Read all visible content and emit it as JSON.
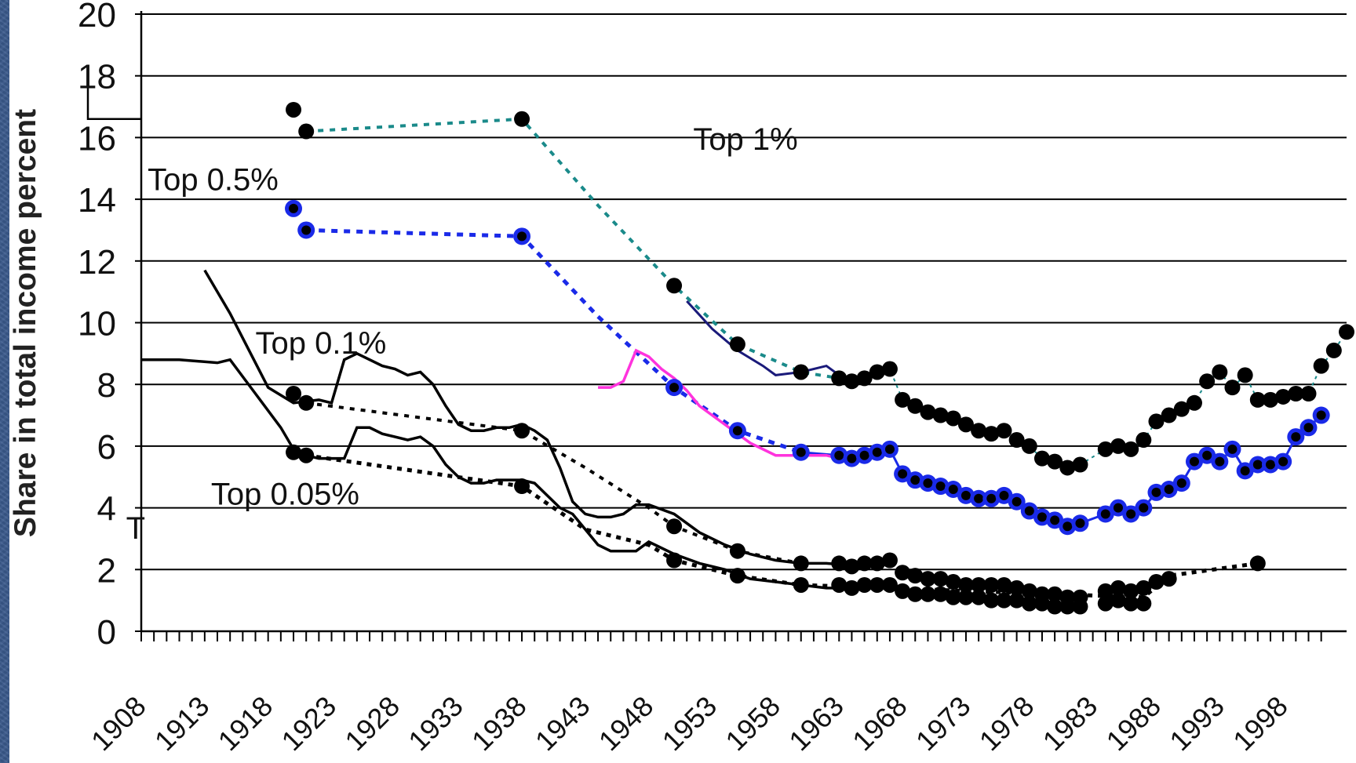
{
  "chart_data": {
    "type": "line",
    "ylabel": "Share in total income percent",
    "xlabel": "",
    "ylim": [
      0,
      20
    ],
    "xlim": [
      1908,
      2001
    ],
    "yticks": [
      0,
      2,
      4,
      6,
      8,
      10,
      12,
      14,
      16,
      18,
      20
    ],
    "xticks": [
      "1908",
      "1913",
      "1918",
      "1923",
      "1928",
      "1933",
      "1938",
      "1943",
      "1948",
      "1953",
      "1958",
      "1963",
      "1968",
      "1973",
      "1978",
      "1983",
      "1988",
      "1993",
      "1998"
    ],
    "grid": true,
    "colors": {
      "top1": "#1a8a8a",
      "top05": "#1a2ae8",
      "magenta": "#ff33dd",
      "navy": "#1a1a7a",
      "black": "#000000"
    },
    "annotations": [
      {
        "text": "Top 1%",
        "x": 1951.5,
        "y": 15.6
      },
      {
        "text": "Top 0.5%",
        "x": 1908.5,
        "y": 14.3
      },
      {
        "text": "Top 0.1%",
        "x": 1917,
        "y": 9.0
      },
      {
        "text": "Top 0.05%",
        "x": 1913.5,
        "y": 4.1
      },
      {
        "text": "T",
        "x": 1906.8,
        "y": 3.0
      }
    ],
    "series": [
      {
        "key": "top1_points",
        "points": [
          [
            1920,
            16.9
          ],
          [
            1921,
            16.2
          ],
          [
            1938,
            16.6
          ],
          [
            1950,
            11.2
          ],
          [
            1955,
            9.3
          ],
          [
            1960,
            8.4
          ],
          [
            1963,
            8.2
          ],
          [
            1964,
            8.1
          ],
          [
            1965,
            8.2
          ],
          [
            1966,
            8.4
          ],
          [
            1967,
            8.5
          ],
          [
            1968,
            7.5
          ],
          [
            1969,
            7.3
          ],
          [
            1970,
            7.1
          ],
          [
            1971,
            7.0
          ],
          [
            1972,
            6.9
          ],
          [
            1973,
            6.7
          ],
          [
            1974,
            6.5
          ],
          [
            1975,
            6.4
          ],
          [
            1976,
            6.5
          ],
          [
            1977,
            6.2
          ],
          [
            1978,
            6.0
          ],
          [
            1979,
            5.6
          ],
          [
            1980,
            5.5
          ],
          [
            1981,
            5.3
          ],
          [
            1982,
            5.4
          ],
          [
            1984,
            5.9
          ],
          [
            1985,
            6.0
          ],
          [
            1986,
            5.9
          ],
          [
            1987,
            6.2
          ],
          [
            1988,
            6.8
          ],
          [
            1989,
            7.0
          ],
          [
            1990,
            7.2
          ],
          [
            1991,
            7.4
          ],
          [
            1992,
            8.1
          ],
          [
            1993,
            8.4
          ],
          [
            1994,
            7.9
          ],
          [
            1995,
            8.3
          ],
          [
            1996,
            7.5
          ],
          [
            1997,
            7.5
          ],
          [
            1998,
            7.6
          ],
          [
            1999,
            7.7
          ],
          [
            2000,
            7.7
          ],
          [
            2001,
            8.6
          ],
          [
            2002,
            9.1
          ],
          [
            2003,
            9.7
          ]
        ]
      },
      {
        "key": "top05_points",
        "points": [
          [
            1920,
            13.7
          ],
          [
            1921,
            13.0
          ],
          [
            1938,
            12.8
          ],
          [
            1950,
            7.9
          ],
          [
            1955,
            6.5
          ],
          [
            1960,
            5.8
          ],
          [
            1963,
            5.7
          ],
          [
            1964,
            5.6
          ],
          [
            1965,
            5.7
          ],
          [
            1966,
            5.8
          ],
          [
            1967,
            5.9
          ],
          [
            1968,
            5.1
          ],
          [
            1969,
            4.9
          ],
          [
            1970,
            4.8
          ],
          [
            1971,
            4.7
          ],
          [
            1972,
            4.6
          ],
          [
            1973,
            4.4
          ],
          [
            1974,
            4.3
          ],
          [
            1975,
            4.3
          ],
          [
            1976,
            4.4
          ],
          [
            1977,
            4.2
          ],
          [
            1978,
            3.9
          ],
          [
            1979,
            3.7
          ],
          [
            1980,
            3.6
          ],
          [
            1981,
            3.4
          ],
          [
            1982,
            3.5
          ],
          [
            1984,
            3.8
          ],
          [
            1985,
            4.0
          ],
          [
            1986,
            3.8
          ],
          [
            1987,
            4.0
          ],
          [
            1988,
            4.5
          ],
          [
            1989,
            4.6
          ],
          [
            1990,
            4.8
          ],
          [
            1991,
            5.5
          ],
          [
            1992,
            5.7
          ],
          [
            1993,
            5.5
          ],
          [
            1994,
            5.9
          ],
          [
            1995,
            5.2
          ],
          [
            1996,
            5.4
          ],
          [
            1997,
            5.4
          ],
          [
            1998,
            5.5
          ],
          [
            1999,
            6.3
          ],
          [
            2000,
            6.6
          ],
          [
            2001,
            7.0
          ]
        ]
      },
      {
        "key": "top01_points",
        "points": [
          [
            1920,
            7.7
          ],
          [
            1921,
            7.4
          ],
          [
            1938,
            6.5
          ],
          [
            1950,
            3.4
          ],
          [
            1955,
            2.6
          ],
          [
            1960,
            2.2
          ],
          [
            1963,
            2.2
          ],
          [
            1964,
            2.1
          ],
          [
            1965,
            2.2
          ],
          [
            1966,
            2.2
          ],
          [
            1967,
            2.3
          ],
          [
            1968,
            1.9
          ],
          [
            1969,
            1.8
          ],
          [
            1970,
            1.7
          ],
          [
            1971,
            1.7
          ],
          [
            1972,
            1.6
          ],
          [
            1973,
            1.5
          ],
          [
            1974,
            1.5
          ],
          [
            1975,
            1.5
          ],
          [
            1976,
            1.5
          ],
          [
            1977,
            1.4
          ],
          [
            1978,
            1.3
          ],
          [
            1979,
            1.2
          ],
          [
            1980,
            1.2
          ],
          [
            1981,
            1.1
          ],
          [
            1982,
            1.1
          ],
          [
            1984,
            1.3
          ],
          [
            1985,
            1.4
          ],
          [
            1986,
            1.3
          ],
          [
            1987,
            1.4
          ],
          [
            1988,
            1.6
          ],
          [
            1989,
            1.7
          ]
        ]
      },
      {
        "key": "top005_points",
        "points": [
          [
            1920,
            5.8
          ],
          [
            1921,
            5.7
          ],
          [
            1938,
            4.7
          ],
          [
            1950,
            2.3
          ],
          [
            1955,
            1.8
          ],
          [
            1960,
            1.5
          ],
          [
            1963,
            1.5
          ],
          [
            1964,
            1.4
          ],
          [
            1965,
            1.5
          ],
          [
            1966,
            1.5
          ],
          [
            1967,
            1.5
          ],
          [
            1968,
            1.3
          ],
          [
            1969,
            1.2
          ],
          [
            1970,
            1.2
          ],
          [
            1971,
            1.2
          ],
          [
            1972,
            1.1
          ],
          [
            1973,
            1.1
          ],
          [
            1974,
            1.1
          ],
          [
            1975,
            1.0
          ],
          [
            1976,
            1.0
          ],
          [
            1977,
            1.0
          ],
          [
            1978,
            0.9
          ],
          [
            1979,
            0.9
          ],
          [
            1980,
            0.8
          ],
          [
            1981,
            0.8
          ],
          [
            1982,
            0.8
          ],
          [
            1984,
            0.9
          ],
          [
            1985,
            1.0
          ],
          [
            1986,
            0.9
          ],
          [
            1987,
            0.9
          ],
          [
            1996,
            2.2
          ]
        ]
      },
      {
        "key": "top01_dotted",
        "points": [
          [
            1921,
            7.4
          ],
          [
            1938,
            6.5
          ],
          [
            1943,
            5.3
          ],
          [
            1948,
            4.0
          ],
          [
            1950,
            3.4
          ],
          [
            1955,
            2.6
          ],
          [
            1960,
            2.2
          ]
        ]
      },
      {
        "key": "top005_dotted",
        "points": [
          [
            1921,
            5.7
          ],
          [
            1938,
            4.7
          ],
          [
            1943,
            3.3
          ],
          [
            1948,
            2.8
          ],
          [
            1950,
            2.3
          ],
          [
            1955,
            1.8
          ],
          [
            1960,
            1.5
          ],
          [
            1987,
            1.1
          ],
          [
            1989,
            1.8
          ],
          [
            1996,
            2.2
          ]
        ]
      },
      {
        "key": "top01_solid",
        "points": [
          [
            1908,
            8.8
          ],
          [
            1911,
            8.8
          ],
          [
            1914,
            8.7
          ],
          [
            1915,
            8.8
          ],
          [
            1917,
            7.7
          ],
          [
            1919,
            6.6
          ],
          [
            1920,
            5.9
          ],
          [
            1921,
            5.7
          ],
          [
            1922,
            5.6
          ],
          [
            1923,
            5.6
          ],
          [
            1924,
            5.6
          ],
          [
            1925,
            6.6
          ],
          [
            1926,
            6.6
          ],
          [
            1927,
            6.4
          ],
          [
            1928,
            6.3
          ],
          [
            1929,
            6.2
          ],
          [
            1930,
            6.3
          ],
          [
            1931,
            6.0
          ],
          [
            1932,
            5.4
          ],
          [
            1933,
            5.0
          ],
          [
            1934,
            4.8
          ],
          [
            1935,
            4.8
          ],
          [
            1936,
            4.9
          ],
          [
            1937,
            4.9
          ],
          [
            1938,
            4.9
          ],
          [
            1939,
            4.8
          ],
          [
            1940,
            4.4
          ],
          [
            1941,
            4.0
          ],
          [
            1942,
            3.8
          ],
          [
            1943,
            3.3
          ],
          [
            1944,
            2.8
          ],
          [
            1945,
            2.6
          ],
          [
            1946,
            2.6
          ],
          [
            1947,
            2.6
          ],
          [
            1948,
            2.9
          ],
          [
            1950,
            2.5
          ],
          [
            1952,
            2.2
          ],
          [
            1954,
            2.0
          ],
          [
            1956,
            1.7
          ],
          [
            1958,
            1.6
          ],
          [
            1960,
            1.5
          ],
          [
            1962,
            1.4
          ],
          [
            1965,
            1.4
          ],
          [
            1967,
            1.5
          ]
        ]
      },
      {
        "key": "top005_solid",
        "points": [
          [
            1913,
            11.7
          ],
          [
            1915,
            10.3
          ],
          [
            1917,
            8.7
          ],
          [
            1918,
            7.9
          ],
          [
            1920,
            7.4
          ],
          [
            1922,
            7.5
          ],
          [
            1923,
            7.4
          ],
          [
            1924,
            8.8
          ],
          [
            1925,
            9.0
          ],
          [
            1926,
            8.8
          ],
          [
            1927,
            8.6
          ],
          [
            1928,
            8.5
          ],
          [
            1929,
            8.3
          ],
          [
            1930,
            8.4
          ],
          [
            1931,
            8.0
          ],
          [
            1932,
            7.3
          ],
          [
            1933,
            6.7
          ],
          [
            1934,
            6.5
          ],
          [
            1935,
            6.5
          ],
          [
            1936,
            6.6
          ],
          [
            1937,
            6.6
          ],
          [
            1938,
            6.7
          ],
          [
            1939,
            6.5
          ],
          [
            1940,
            6.2
          ],
          [
            1941,
            5.3
          ],
          [
            1942,
            4.2
          ],
          [
            1943,
            3.8
          ],
          [
            1944,
            3.7
          ],
          [
            1945,
            3.7
          ],
          [
            1946,
            3.8
          ],
          [
            1947,
            4.1
          ],
          [
            1948,
            4.1
          ],
          [
            1950,
            3.8
          ],
          [
            1952,
            3.2
          ],
          [
            1954,
            2.8
          ],
          [
            1956,
            2.5
          ],
          [
            1958,
            2.3
          ],
          [
            1960,
            2.2
          ],
          [
            1962,
            2.2
          ],
          [
            1965,
            2.1
          ],
          [
            1967,
            2.2
          ]
        ]
      },
      {
        "key": "top1_dotted",
        "points": [
          [
            1921,
            16.2
          ],
          [
            1938,
            16.6
          ],
          [
            1944,
            13.8
          ],
          [
            1950,
            11.2
          ],
          [
            1955,
            9.3
          ],
          [
            1960,
            8.4
          ],
          [
            1963,
            8.2
          ]
        ]
      },
      {
        "key": "top05_dotted",
        "points": [
          [
            1921,
            13.0
          ],
          [
            1938,
            12.8
          ],
          [
            1944,
            10.2
          ],
          [
            1950,
            7.9
          ],
          [
            1955,
            6.5
          ],
          [
            1960,
            5.8
          ]
        ]
      },
      {
        "key": "navy_line",
        "points": [
          [
            1951,
            10.7
          ],
          [
            1953,
            9.8
          ],
          [
            1955,
            9.1
          ],
          [
            1957,
            8.6
          ],
          [
            1958,
            8.3
          ],
          [
            1960,
            8.4
          ],
          [
            1962,
            8.6
          ],
          [
            1963,
            8.3
          ]
        ]
      },
      {
        "key": "magenta_line",
        "points": [
          [
            1944,
            7.9
          ],
          [
            1945,
            7.9
          ],
          [
            1946,
            8.1
          ],
          [
            1947,
            9.1
          ],
          [
            1948,
            8.9
          ],
          [
            1949,
            8.5
          ],
          [
            1950,
            8.2
          ],
          [
            1951,
            7.8
          ],
          [
            1952,
            7.3
          ],
          [
            1954,
            6.7
          ],
          [
            1956,
            6.1
          ],
          [
            1958,
            5.7
          ],
          [
            1960,
            5.7
          ],
          [
            1962,
            5.7
          ],
          [
            1963,
            5.6
          ]
        ]
      }
    ]
  }
}
